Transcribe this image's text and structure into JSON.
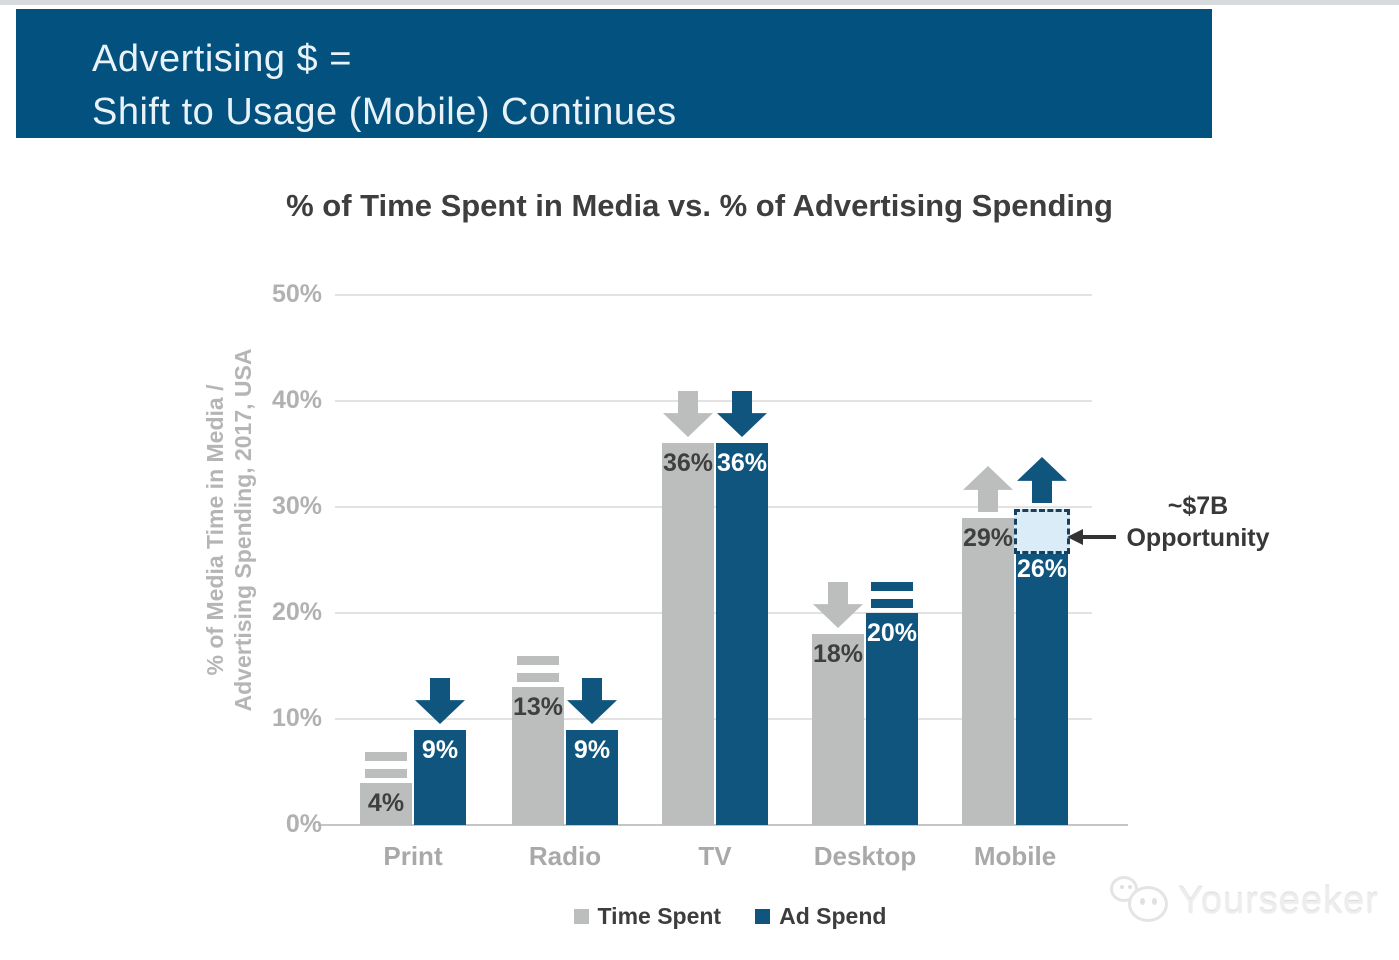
{
  "page": {
    "background_color": "#ffffff",
    "top_strip_color": "#d6dadd"
  },
  "header": {
    "line1": "Advertising $ =",
    "line2": "Shift to Usage (Mobile) Continues",
    "bg_color": "#02517e",
    "text_color": "#e9f2f9"
  },
  "chart_data": {
    "type": "bar",
    "title": "% of Time Spent in Media vs. % of Advertising Spending",
    "ylabel_line1": "% of Media Time in Media /",
    "ylabel_line2": "Advertising Spending, 2017, USA",
    "ylim": [
      0,
      50
    ],
    "ytick_values": [
      50,
      40,
      30,
      20,
      10,
      0
    ],
    "ytick_labels": [
      "50%",
      "40%",
      "30%",
      "20%",
      "10%",
      "0%"
    ],
    "grid": true,
    "categories": [
      "Print",
      "Radio",
      "TV",
      "Desktop",
      "Mobile"
    ],
    "series": [
      {
        "name": "Time Spent",
        "color": "#bcbdbd",
        "values": [
          4,
          13,
          36,
          18,
          29
        ],
        "labels": [
          "4%",
          "13%",
          "36%",
          "18%",
          "29%"
        ],
        "label_color": "#3f3f3f",
        "indicators": [
          "equals",
          "equals",
          "down",
          "down",
          "up"
        ]
      },
      {
        "name": "Ad Spend",
        "color": "#10557e",
        "values": [
          9,
          9,
          36,
          20,
          26
        ],
        "labels": [
          "9%",
          "9%",
          "36%",
          "20%",
          "26%"
        ],
        "label_color": "#ffffff",
        "indicators": [
          "down",
          "down",
          "down",
          "equals",
          "up"
        ]
      }
    ],
    "legend": [
      {
        "label": "Time Spent",
        "color": "#bcbdbd"
      },
      {
        "label": "Ad Spend",
        "color": "#10557e"
      }
    ],
    "legend_position": "bottom",
    "annotation": {
      "line1": "~$7B",
      "line2": "Opportunity",
      "category": "Mobile",
      "series": "Ad Spend",
      "box_top_value": 29.8,
      "box_bottom_value": 25.6,
      "box_fill": "#d9ecf8",
      "box_border": "#16405e"
    }
  },
  "watermark": {
    "text": "Yourseeker"
  }
}
